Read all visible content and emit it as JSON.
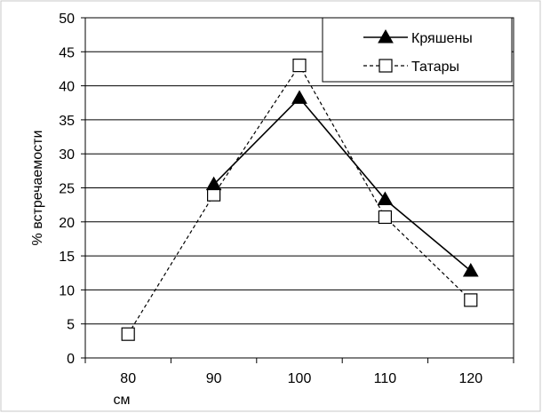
{
  "chart_data": {
    "type": "line",
    "title": "",
    "xlabel": "см",
    "ylabel": "% встречаемости",
    "categories": [
      "80",
      "90",
      "100",
      "110",
      "120"
    ],
    "ylim": [
      0,
      50
    ],
    "yticks": [
      0,
      5,
      10,
      15,
      20,
      25,
      30,
      35,
      40,
      45,
      50
    ],
    "grid": true,
    "legend_position": "top-right",
    "series": [
      {
        "name": "Кряшены",
        "values": [
          null,
          25.5,
          38.2,
          23.3,
          12.8
        ],
        "marker": "filled-triangle",
        "line_style": "solid",
        "color": "#000000"
      },
      {
        "name": "Татары",
        "values": [
          3.5,
          24.0,
          43.0,
          20.7,
          8.5
        ],
        "marker": "open-square",
        "line_style": "dashed",
        "color": "#000000"
      }
    ]
  }
}
